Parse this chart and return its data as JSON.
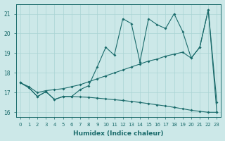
{
  "xlabel": "Humidex (Indice chaleur)",
  "bg_color": "#cce8e8",
  "line_color": "#1a6b6b",
  "grid_color": "#aad4d4",
  "xlim": [
    -0.5,
    23.5
  ],
  "ylim": [
    15.75,
    21.5
  ],
  "yticks": [
    16,
    17,
    18,
    19,
    20,
    21
  ],
  "xticks": [
    0,
    1,
    2,
    3,
    4,
    5,
    6,
    7,
    8,
    9,
    10,
    11,
    12,
    13,
    14,
    15,
    16,
    17,
    18,
    19,
    20,
    21,
    22,
    23
  ],
  "line1_y": [
    17.5,
    17.25,
    16.8,
    17.05,
    16.65,
    16.8,
    16.8,
    17.15,
    17.35,
    18.3,
    19.3,
    18.9,
    20.75,
    20.5,
    18.55,
    20.75,
    20.45,
    20.25,
    21.0,
    20.1,
    18.75,
    19.3,
    21.2,
    16.0
  ],
  "line2_y": [
    17.5,
    17.3,
    17.0,
    17.1,
    17.15,
    17.2,
    17.3,
    17.4,
    17.55,
    17.7,
    17.85,
    18.0,
    18.15,
    18.3,
    18.45,
    18.6,
    18.7,
    18.85,
    18.95,
    19.05,
    18.75,
    19.3,
    21.2,
    16.5
  ],
  "line3_y": [
    17.5,
    17.25,
    16.8,
    17.05,
    16.65,
    16.8,
    16.8,
    16.78,
    16.76,
    16.72,
    16.68,
    16.64,
    16.6,
    16.55,
    16.5,
    16.44,
    16.38,
    16.32,
    16.25,
    16.18,
    16.1,
    16.05,
    16.0,
    16.0
  ]
}
